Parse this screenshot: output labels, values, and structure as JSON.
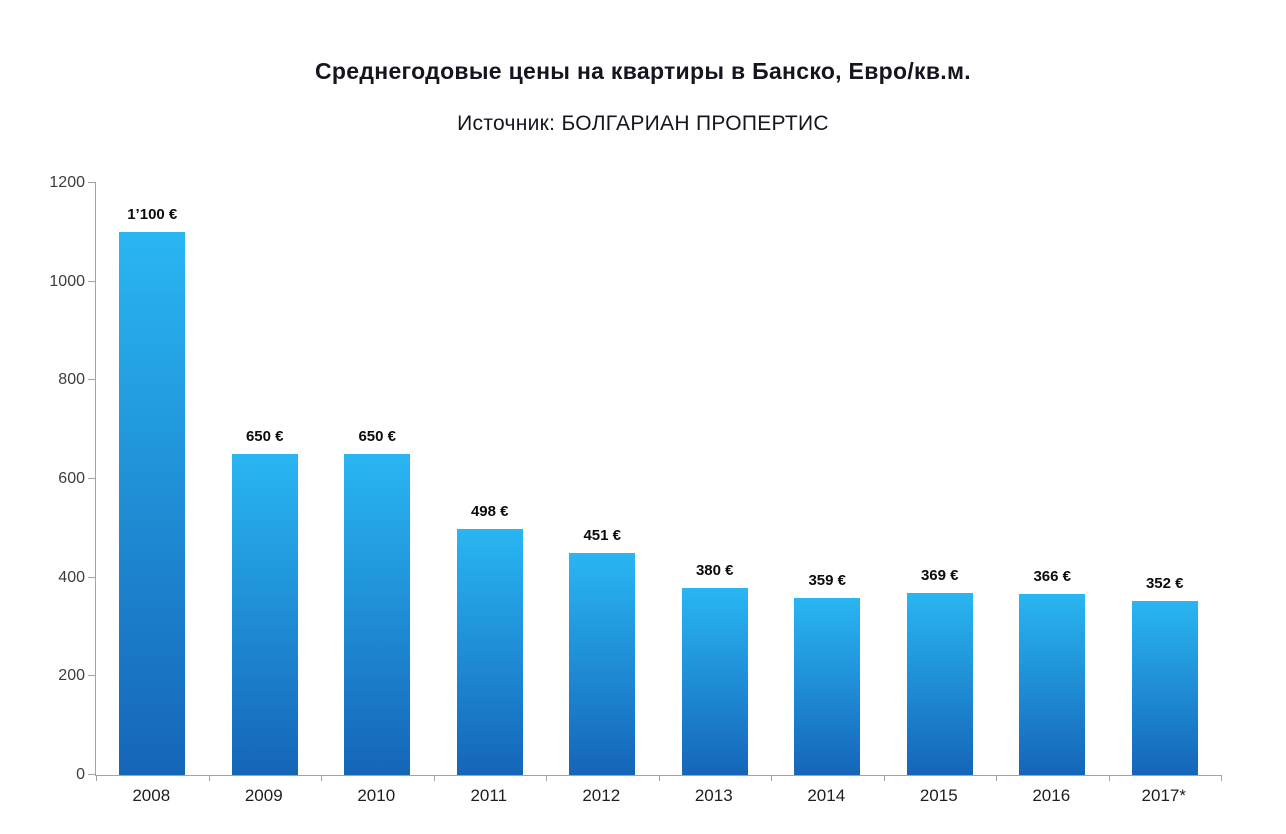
{
  "chart_data": {
    "type": "bar",
    "title": "Среднегодовые цены на квартиры в Банско, Евро/кв.м.",
    "subtitle": "Источник: БОЛГАРИАН ПРОПЕРТИС",
    "categories": [
      "2008",
      "2009",
      "2010",
      "2011",
      "2012",
      "2013",
      "2014",
      "2015",
      "2016",
      "2017*"
    ],
    "values": [
      1100,
      650,
      650,
      498,
      451,
      380,
      359,
      369,
      366,
      352
    ],
    "value_labels": [
      "1’100 €",
      "650 €",
      "650 €",
      "498 €",
      "451 €",
      "380 €",
      "359 €",
      "369 €",
      "366 €",
      "352 €"
    ],
    "xlabel": "",
    "ylabel": "",
    "ylim": [
      0,
      1200
    ],
    "yticks": [
      0,
      200,
      400,
      600,
      800,
      1000,
      1200
    ],
    "grid": false,
    "legend": false,
    "bar_color_top": "#29b6f2",
    "bar_color_bottom": "#1565b8",
    "axis_color": "#a3a3a3"
  }
}
